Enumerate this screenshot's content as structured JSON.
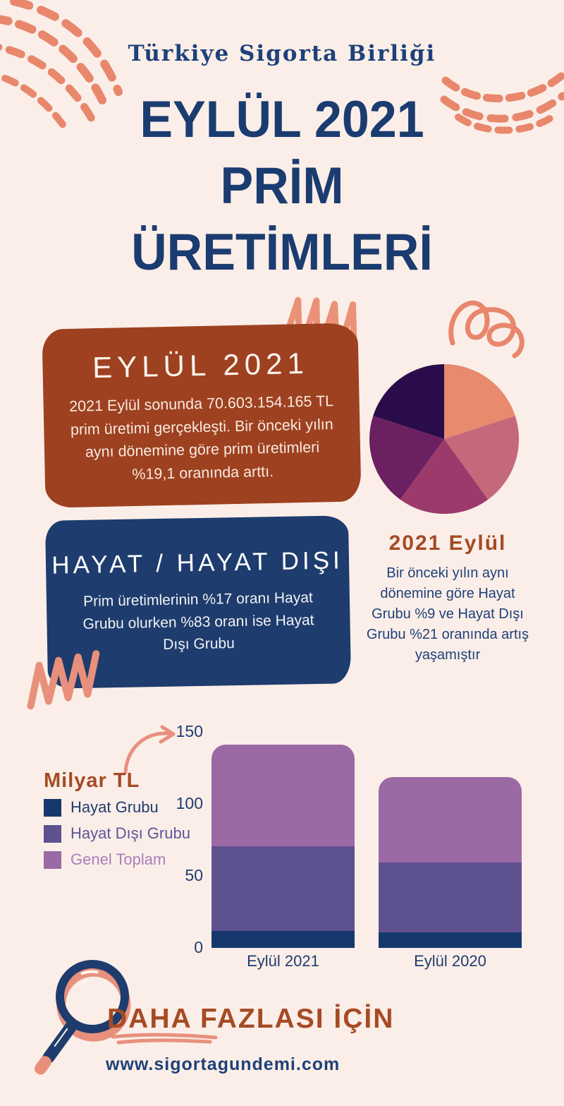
{
  "colors": {
    "background": "#FBEEE8",
    "navy": "#1E3C6D",
    "title_navy": "#1A3C70",
    "rust": "#A54A24",
    "brown_card": "#9D4120",
    "coral_decor": "#E8876C"
  },
  "header": {
    "brand": "Türkiye Sigorta Birliği",
    "title_lines": [
      "EYLÜL 2021",
      "PRİM",
      "ÜRETİMLERİ"
    ]
  },
  "eylul_card": {
    "title": "EYLÜL 2021",
    "body": "2021 Eylül sonunda 70.603.154.165 TL prim üretimi gerçekleşti. Bir önceki yılın aynı dönemine göre prim üretimleri %19,1 oranında arttı."
  },
  "hayat_card": {
    "title": "HAYAT / HAYAT DIŞI",
    "body": "Prim üretimlerinin %17 oranı Hayat Grubu olurken %83 oranı ise Hayat Dışı Grubu"
  },
  "comparison_note": {
    "title": "2021 Eylül",
    "body": "Bir önceki yılın aynı dönemine göre Hayat Grubu %9 ve Hayat Dışı Grubu %21 oranında artış yaşamıştır"
  },
  "footer": {
    "cta": "DAHA FAZLASI İÇİN",
    "website": "www.sigortagundemi.com"
  },
  "chart_data": [
    {
      "type": "pie",
      "values": [
        20,
        20,
        20,
        20,
        20
      ],
      "colors": [
        "#E78A6E",
        "#C4687B",
        "#9C3A6B",
        "#6B2161",
        "#2B0C4B"
      ],
      "start_angle_deg": 0,
      "direction": "clockwise",
      "labels_shown": false
    },
    {
      "type": "bar",
      "stacked": true,
      "unit_label": "Milyar TL",
      "categories": [
        "Eylül 2021",
        "Eylül 2020"
      ],
      "series": [
        {
          "name": "Hayat Grubu",
          "color": "#16396D",
          "label_color": "#1E3C6F",
          "values": [
            12,
            11
          ]
        },
        {
          "name": "Hayat Dışı Grubu",
          "color": "#5E5190",
          "label_color": "#5D549A",
          "values": [
            58.6,
            48.4
          ]
        },
        {
          "name": "Genel Toplam",
          "color": "#9B6AA5",
          "label_color": "#A87FBC",
          "values": [
            70.6,
            59.3
          ]
        }
      ],
      "yticks": [
        0,
        50,
        100,
        150
      ],
      "ylim": [
        0,
        150
      ],
      "legend_position": "left",
      "grid": false
    }
  ]
}
